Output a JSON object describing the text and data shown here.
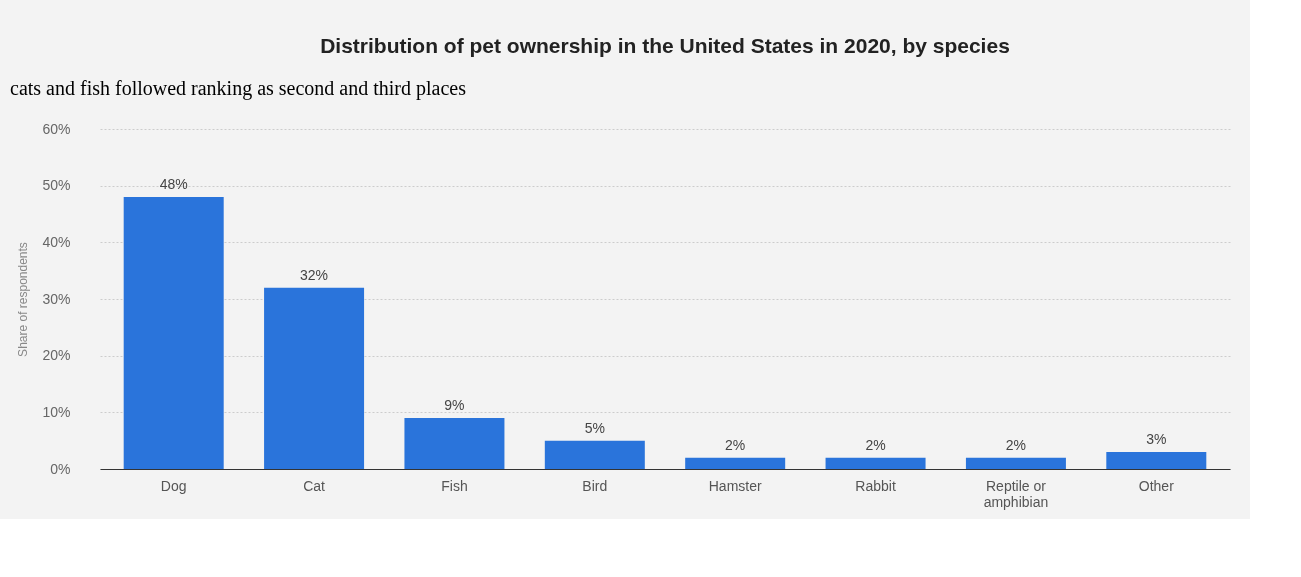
{
  "chart_data": {
    "type": "bar",
    "title": "Distribution of pet ownership in the United States in 2020, by species",
    "ylabel": "Share of respondents",
    "annotations": [
      "cats and fish followed ranking as second and third places"
    ],
    "categories": [
      "Dog",
      "Cat",
      "Fish",
      "Bird",
      "Hamster",
      "Rabbit",
      "Reptile or amphibian",
      "Other"
    ],
    "values": [
      48,
      32,
      9,
      5,
      2,
      2,
      2,
      3
    ],
    "value_labels": [
      "48%",
      "32%",
      "9%",
      "5%",
      "2%",
      "2%",
      "2%",
      "3%"
    ],
    "color": "#2a74db",
    "ylim": [
      0,
      60
    ],
    "yticks": [
      {
        "value": 0,
        "label": "0%"
      },
      {
        "value": 10,
        "label": "10%"
      },
      {
        "value": 20,
        "label": "20%"
      },
      {
        "value": 30,
        "label": "30%"
      },
      {
        "value": 40,
        "label": "40%"
      },
      {
        "value": 50,
        "label": "50%"
      },
      {
        "value": 60,
        "label": "60%"
      }
    ],
    "grid": "y"
  }
}
